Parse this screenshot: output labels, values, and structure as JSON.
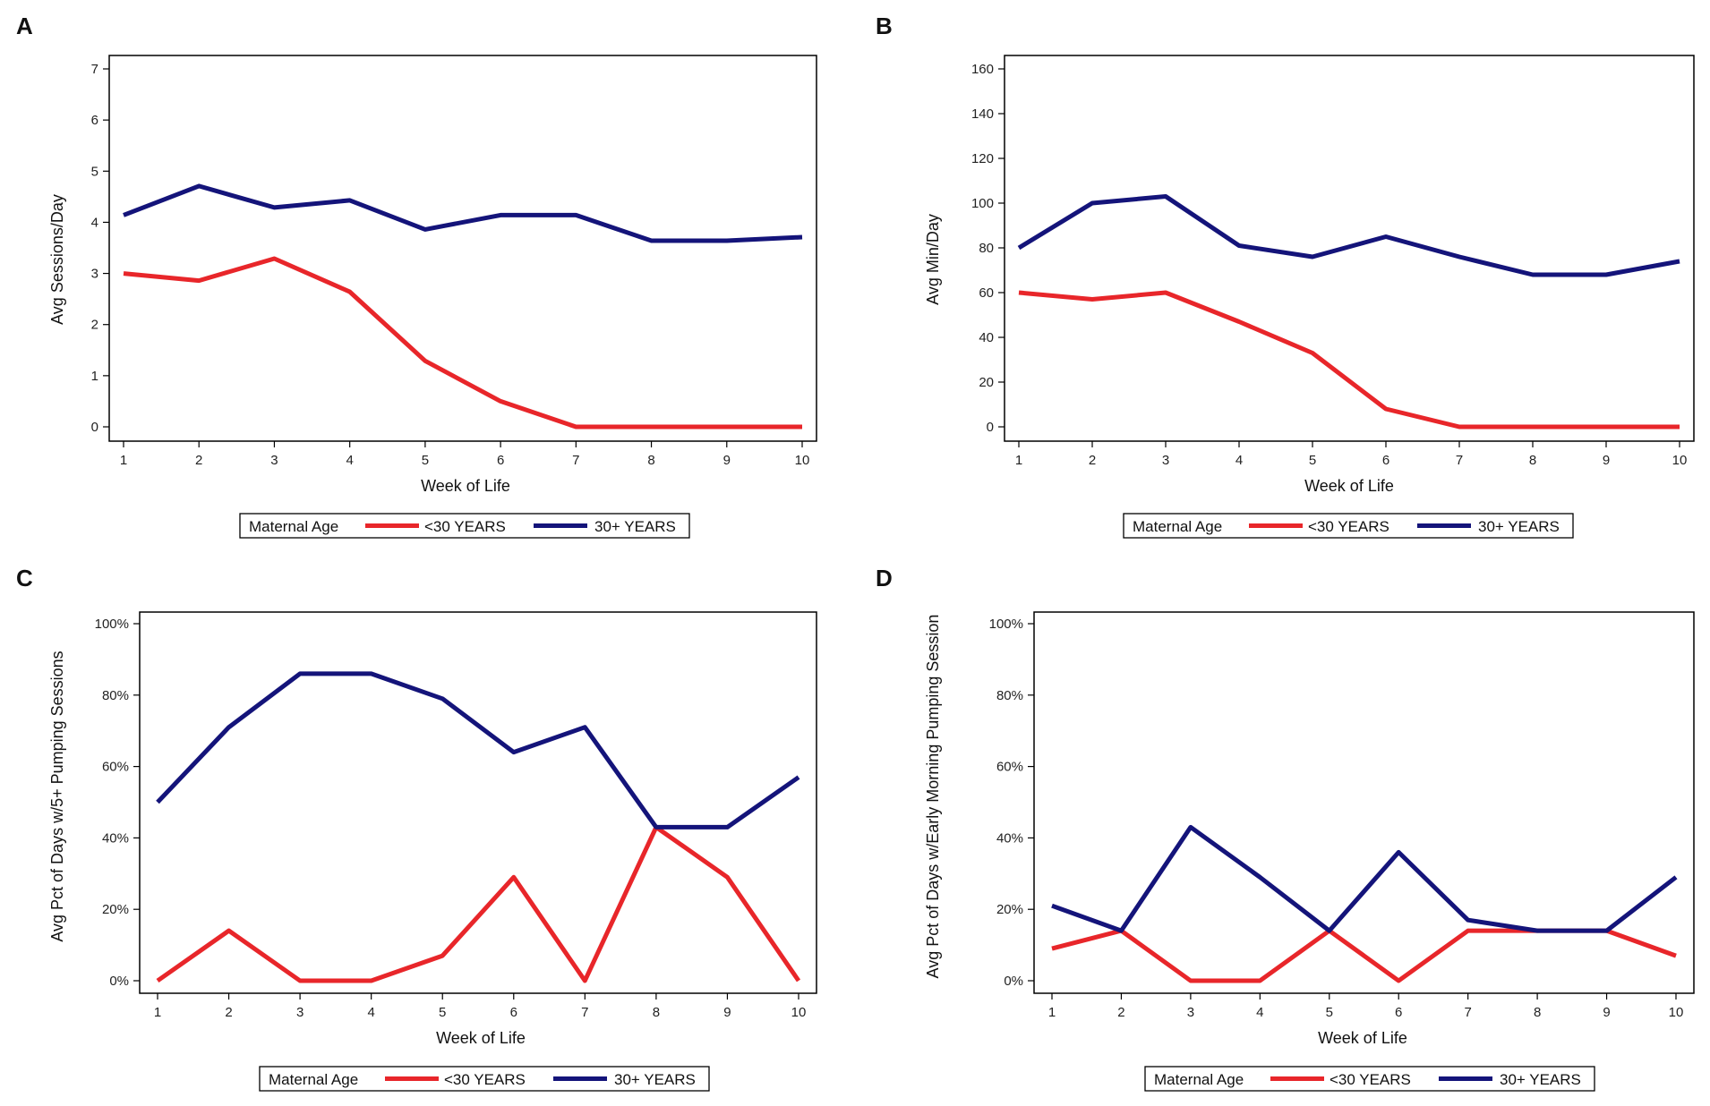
{
  "colors": {
    "series_under_30": "#e8262a",
    "series_30_plus": "#14147a"
  },
  "legend": {
    "title": "Maternal Age",
    "items": [
      "<30 YEARS",
      "30+ YEARS"
    ]
  },
  "chart_data": [
    {
      "panel": "A",
      "type": "line",
      "xlabel": "Week of Life",
      "ylabel": "Avg Sessions/Day",
      "x": [
        1,
        2,
        3,
        4,
        5,
        6,
        7,
        8,
        9,
        10
      ],
      "x_ticks": [
        "1",
        "2",
        "3",
        "4",
        "5",
        "6",
        "7",
        "8",
        "9",
        "10"
      ],
      "y_ticks": [
        "0",
        "1",
        "2",
        "3",
        "4",
        "5",
        "6",
        "7"
      ],
      "ylim": [
        0,
        7
      ],
      "series": [
        {
          "name": "<30 YEARS",
          "values": [
            3.0,
            2.86,
            3.29,
            2.64,
            1.29,
            0.5,
            0,
            0,
            0,
            0
          ]
        },
        {
          "name": "30+ YEARS",
          "values": [
            4.14,
            4.71,
            4.29,
            4.43,
            3.86,
            4.14,
            4.14,
            3.64,
            3.64,
            3.71
          ]
        }
      ]
    },
    {
      "panel": "B",
      "type": "line",
      "xlabel": "Week of Life",
      "ylabel": "Avg Min/Day",
      "x": [
        1,
        2,
        3,
        4,
        5,
        6,
        7,
        8,
        9,
        10
      ],
      "x_ticks": [
        "1",
        "2",
        "3",
        "4",
        "5",
        "6",
        "7",
        "8",
        "9",
        "10"
      ],
      "y_ticks": [
        "0",
        "20",
        "40",
        "60",
        "80",
        "100",
        "120",
        "140",
        "160"
      ],
      "ylim": [
        0,
        160
      ],
      "series": [
        {
          "name": "<30 YEARS",
          "values": [
            60,
            57,
            60,
            47,
            33,
            8,
            0,
            0,
            0,
            0
          ]
        },
        {
          "name": "30+ YEARS",
          "values": [
            80,
            100,
            103,
            81,
            76,
            85,
            76,
            68,
            68,
            74
          ]
        }
      ]
    },
    {
      "panel": "C",
      "type": "line",
      "xlabel": "Week of Life",
      "ylabel": "Avg Pct of Days w/5+ Pumping Sessions",
      "x": [
        1,
        2,
        3,
        4,
        5,
        6,
        7,
        8,
        9,
        10
      ],
      "x_ticks": [
        "1",
        "2",
        "3",
        "4",
        "5",
        "6",
        "7",
        "8",
        "9",
        "10"
      ],
      "y_ticks": [
        "0%",
        "20%",
        "40%",
        "60%",
        "80%",
        "100%"
      ],
      "ylim": [
        0,
        100
      ],
      "series": [
        {
          "name": "<30 YEARS",
          "values": [
            0,
            14,
            0,
            0,
            7,
            29,
            0,
            43,
            29,
            0
          ]
        },
        {
          "name": "30+ YEARS",
          "values": [
            50,
            71,
            86,
            86,
            79,
            64,
            71,
            43,
            43,
            57
          ]
        }
      ]
    },
    {
      "panel": "D",
      "type": "line",
      "xlabel": "Week of Life",
      "ylabel": "Avg Pct of Days w/Early Morning Pumping Session",
      "x": [
        1,
        2,
        3,
        4,
        5,
        6,
        7,
        8,
        9,
        10
      ],
      "x_ticks": [
        "1",
        "2",
        "3",
        "4",
        "5",
        "6",
        "7",
        "8",
        "9",
        "10"
      ],
      "y_ticks": [
        "0%",
        "20%",
        "40%",
        "60%",
        "80%",
        "100%"
      ],
      "ylim": [
        0,
        100
      ],
      "series": [
        {
          "name": "<30 YEARS",
          "values": [
            9,
            14,
            0,
            0,
            14,
            0,
            14,
            14,
            14,
            7
          ]
        },
        {
          "name": "30+ YEARS",
          "values": [
            21,
            14,
            43,
            29,
            14,
            36,
            17,
            14,
            14,
            29
          ]
        }
      ]
    }
  ]
}
